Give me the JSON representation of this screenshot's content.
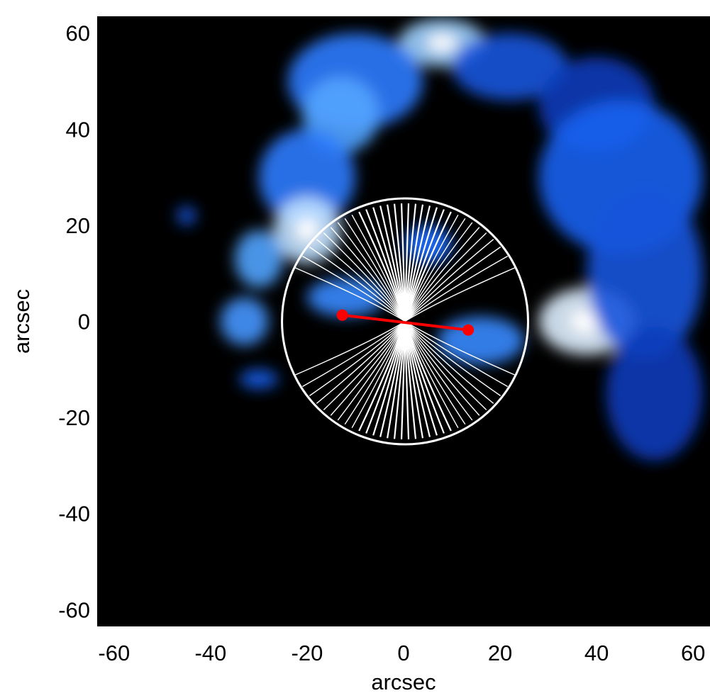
{
  "chart_data": {
    "type": "heatmap",
    "title": "",
    "xlabel": "arcsec",
    "ylabel": "arcsec",
    "xlim": [
      -63.5,
      63.5
    ],
    "ylim": [
      -63.5,
      63.5
    ],
    "x_ticks": [
      -60,
      -40,
      -20,
      0,
      20,
      40,
      60
    ],
    "y_ticks": [
      -60,
      -40,
      -20,
      0,
      20,
      40,
      60
    ],
    "x_tick_labels": [
      "-60",
      "-40",
      "-20",
      "0",
      "20",
      "40",
      "60"
    ],
    "y_tick_labels": [
      "-60",
      "-40",
      "-20",
      "0",
      "20",
      "40",
      "60"
    ],
    "grid": false,
    "legend": "none",
    "colormap": [
      "#000000",
      "#0a2fa8",
      "#1f6dff",
      "#5fb2ff",
      "#ffffff"
    ],
    "background_color": "#000000",
    "emission_blobs": [
      {
        "x": 8,
        "y": 58,
        "rx": 9,
        "ry": 5,
        "intensity": 0.85
      },
      {
        "x": -10,
        "y": 50,
        "rx": 14,
        "ry": 10,
        "intensity": 0.55
      },
      {
        "x": -13,
        "y": 43,
        "rx": 8,
        "ry": 8,
        "intensity": 0.7
      },
      {
        "x": -20,
        "y": 30,
        "rx": 10,
        "ry": 10,
        "intensity": 0.55
      },
      {
        "x": -20,
        "y": 19,
        "rx": 7,
        "ry": 7,
        "intensity": 0.9
      },
      {
        "x": -30,
        "y": 13,
        "rx": 5,
        "ry": 6,
        "intensity": 0.7
      },
      {
        "x": -33,
        "y": 0,
        "rx": 5,
        "ry": 5,
        "intensity": 0.65
      },
      {
        "x": -30,
        "y": -12,
        "rx": 4,
        "ry": 2,
        "intensity": 0.45
      },
      {
        "x": -45,
        "y": 22,
        "rx": 2,
        "ry": 2,
        "intensity": 0.4
      },
      {
        "x": 22,
        "y": 53,
        "rx": 12,
        "ry": 7,
        "intensity": 0.4
      },
      {
        "x": 40,
        "y": 45,
        "rx": 12,
        "ry": 10,
        "intensity": 0.3
      },
      {
        "x": 45,
        "y": 30,
        "rx": 17,
        "ry": 16,
        "intensity": 0.45
      },
      {
        "x": 38,
        "y": 0,
        "rx": 10,
        "ry": 7,
        "intensity": 0.95
      },
      {
        "x": 50,
        "y": 10,
        "rx": 12,
        "ry": 18,
        "intensity": 0.4
      },
      {
        "x": 52,
        "y": -15,
        "rx": 10,
        "ry": 14,
        "intensity": 0.3
      },
      {
        "x": 16,
        "y": -4,
        "rx": 9,
        "ry": 5,
        "intensity": 0.6
      },
      {
        "x": -12,
        "y": 5,
        "rx": 8,
        "ry": 4,
        "intensity": 0.6
      },
      {
        "x": 5,
        "y": 16,
        "rx": 5,
        "ry": 4,
        "intensity": 0.5
      }
    ],
    "field_circle": {
      "center": [
        0.3,
        0.0
      ],
      "radius": 25.5
    },
    "field_lines_count": 32,
    "axis_line": {
      "points": [
        {
          "x": -12.7,
          "y": 1.3
        },
        {
          "x": 13.4,
          "y": -1.8
        }
      ],
      "color": "#ff0000"
    }
  }
}
